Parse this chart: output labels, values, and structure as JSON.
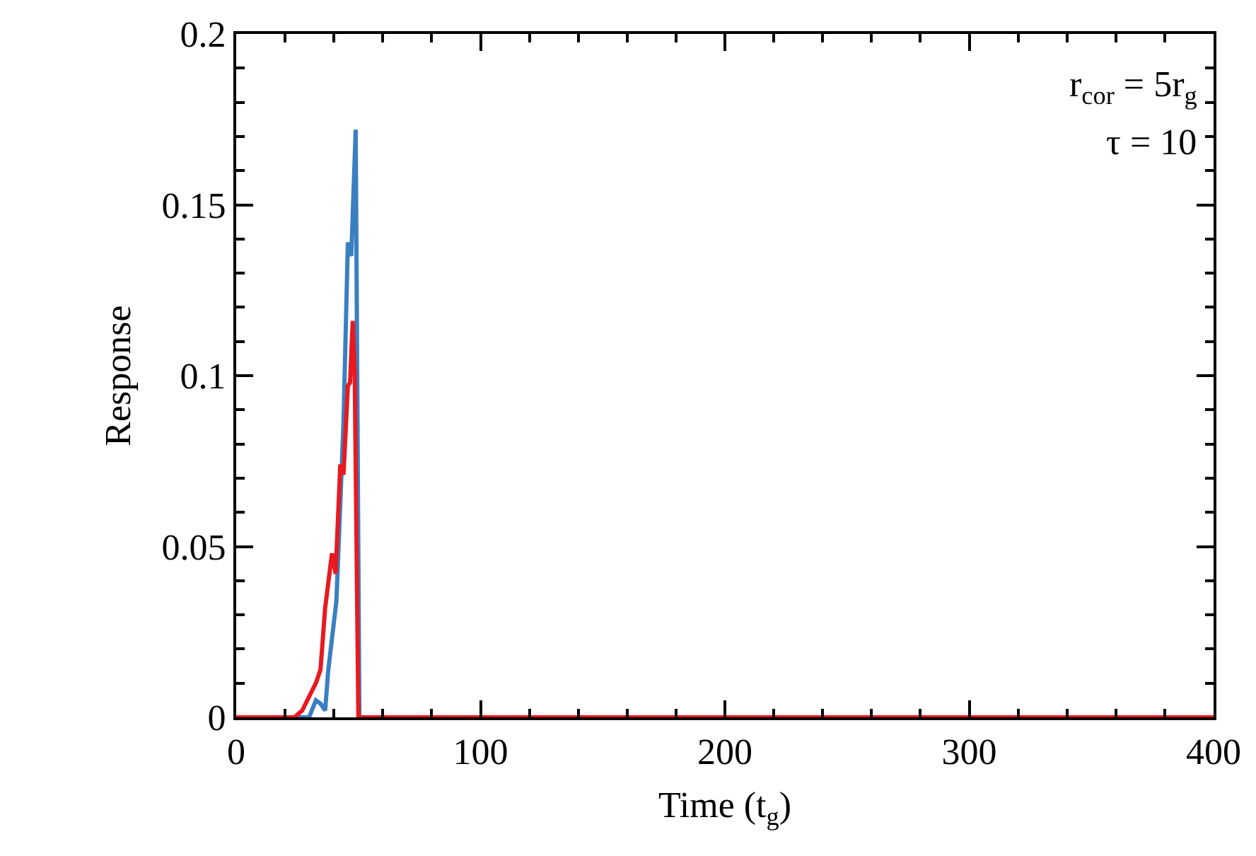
{
  "chart_data": {
    "type": "line",
    "xlabel": "Time (t$_{g}$)",
    "ylabel": "Response",
    "annotations": [
      "r$_{cor}$ = 5r$_{g}$",
      "τ = 10"
    ],
    "xlim": [
      0,
      400
    ],
    "ylim": [
      0,
      0.2
    ],
    "xticks": [
      0,
      100,
      200,
      300,
      400
    ],
    "yticks": [
      0,
      0.05,
      0.1,
      0.15,
      0.2
    ],
    "grid": false,
    "marker": "none",
    "line_style": "solid",
    "series": [
      {
        "color": "#3a7fc1",
        "x": [
          0,
          29.8,
          32.6,
          34.5,
          36.4,
          37.7,
          41,
          43.9,
          45.7,
          47.1,
          48.9,
          50.4,
          400
        ],
        "values": [
          0,
          0,
          0.005,
          0.004,
          0.002,
          0.014,
          0.034,
          0.086,
          0.139,
          0.135,
          0.172,
          0,
          0
        ]
      },
      {
        "color": "#e8191f",
        "x": [
          0,
          23.8,
          27,
          29.8,
          32.6,
          34.5,
          36.4,
          39.2,
          40.7,
          42.6,
          43.9,
          45.7,
          46.6,
          47.7,
          48.5,
          50,
          400
        ],
        "values": [
          0,
          0,
          0.002,
          0.006,
          0.01,
          0.014,
          0.032,
          0.048,
          0.042,
          0.074,
          0.071,
          0.097,
          0.098,
          0.116,
          0.101,
          0,
          0
        ]
      }
    ]
  }
}
